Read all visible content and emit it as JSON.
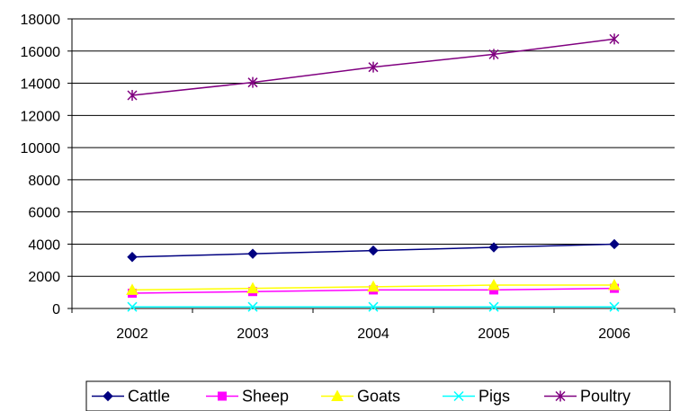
{
  "chart_data": {
    "type": "line",
    "title": "",
    "xlabel": "",
    "ylabel": "",
    "categories": [
      "2002",
      "2003",
      "2004",
      "2005",
      "2006"
    ],
    "ylim": [
      0,
      18000
    ],
    "yticks": [
      0,
      2000,
      4000,
      6000,
      8000,
      10000,
      12000,
      14000,
      16000,
      18000
    ],
    "grid": "horizontal",
    "legend_position": "bottom",
    "series": [
      {
        "name": "Cattle",
        "color": "#000080",
        "marker": "diamond",
        "values": [
          3200,
          3400,
          3600,
          3800,
          4000
        ]
      },
      {
        "name": "Sheep",
        "color": "#ff00ff",
        "marker": "square",
        "values": [
          950,
          1050,
          1150,
          1150,
          1250
        ]
      },
      {
        "name": "Goats",
        "color": "#ffff00",
        "marker": "triangle",
        "values": [
          1150,
          1250,
          1350,
          1450,
          1450
        ]
      },
      {
        "name": "Pigs",
        "color": "#00ffff",
        "marker": "x",
        "values": [
          100,
          100,
          100,
          100,
          100
        ]
      },
      {
        "name": "Poultry",
        "color": "#800080",
        "marker": "asterisk",
        "values": [
          13250,
          14050,
          15000,
          15800,
          16750
        ]
      }
    ]
  }
}
